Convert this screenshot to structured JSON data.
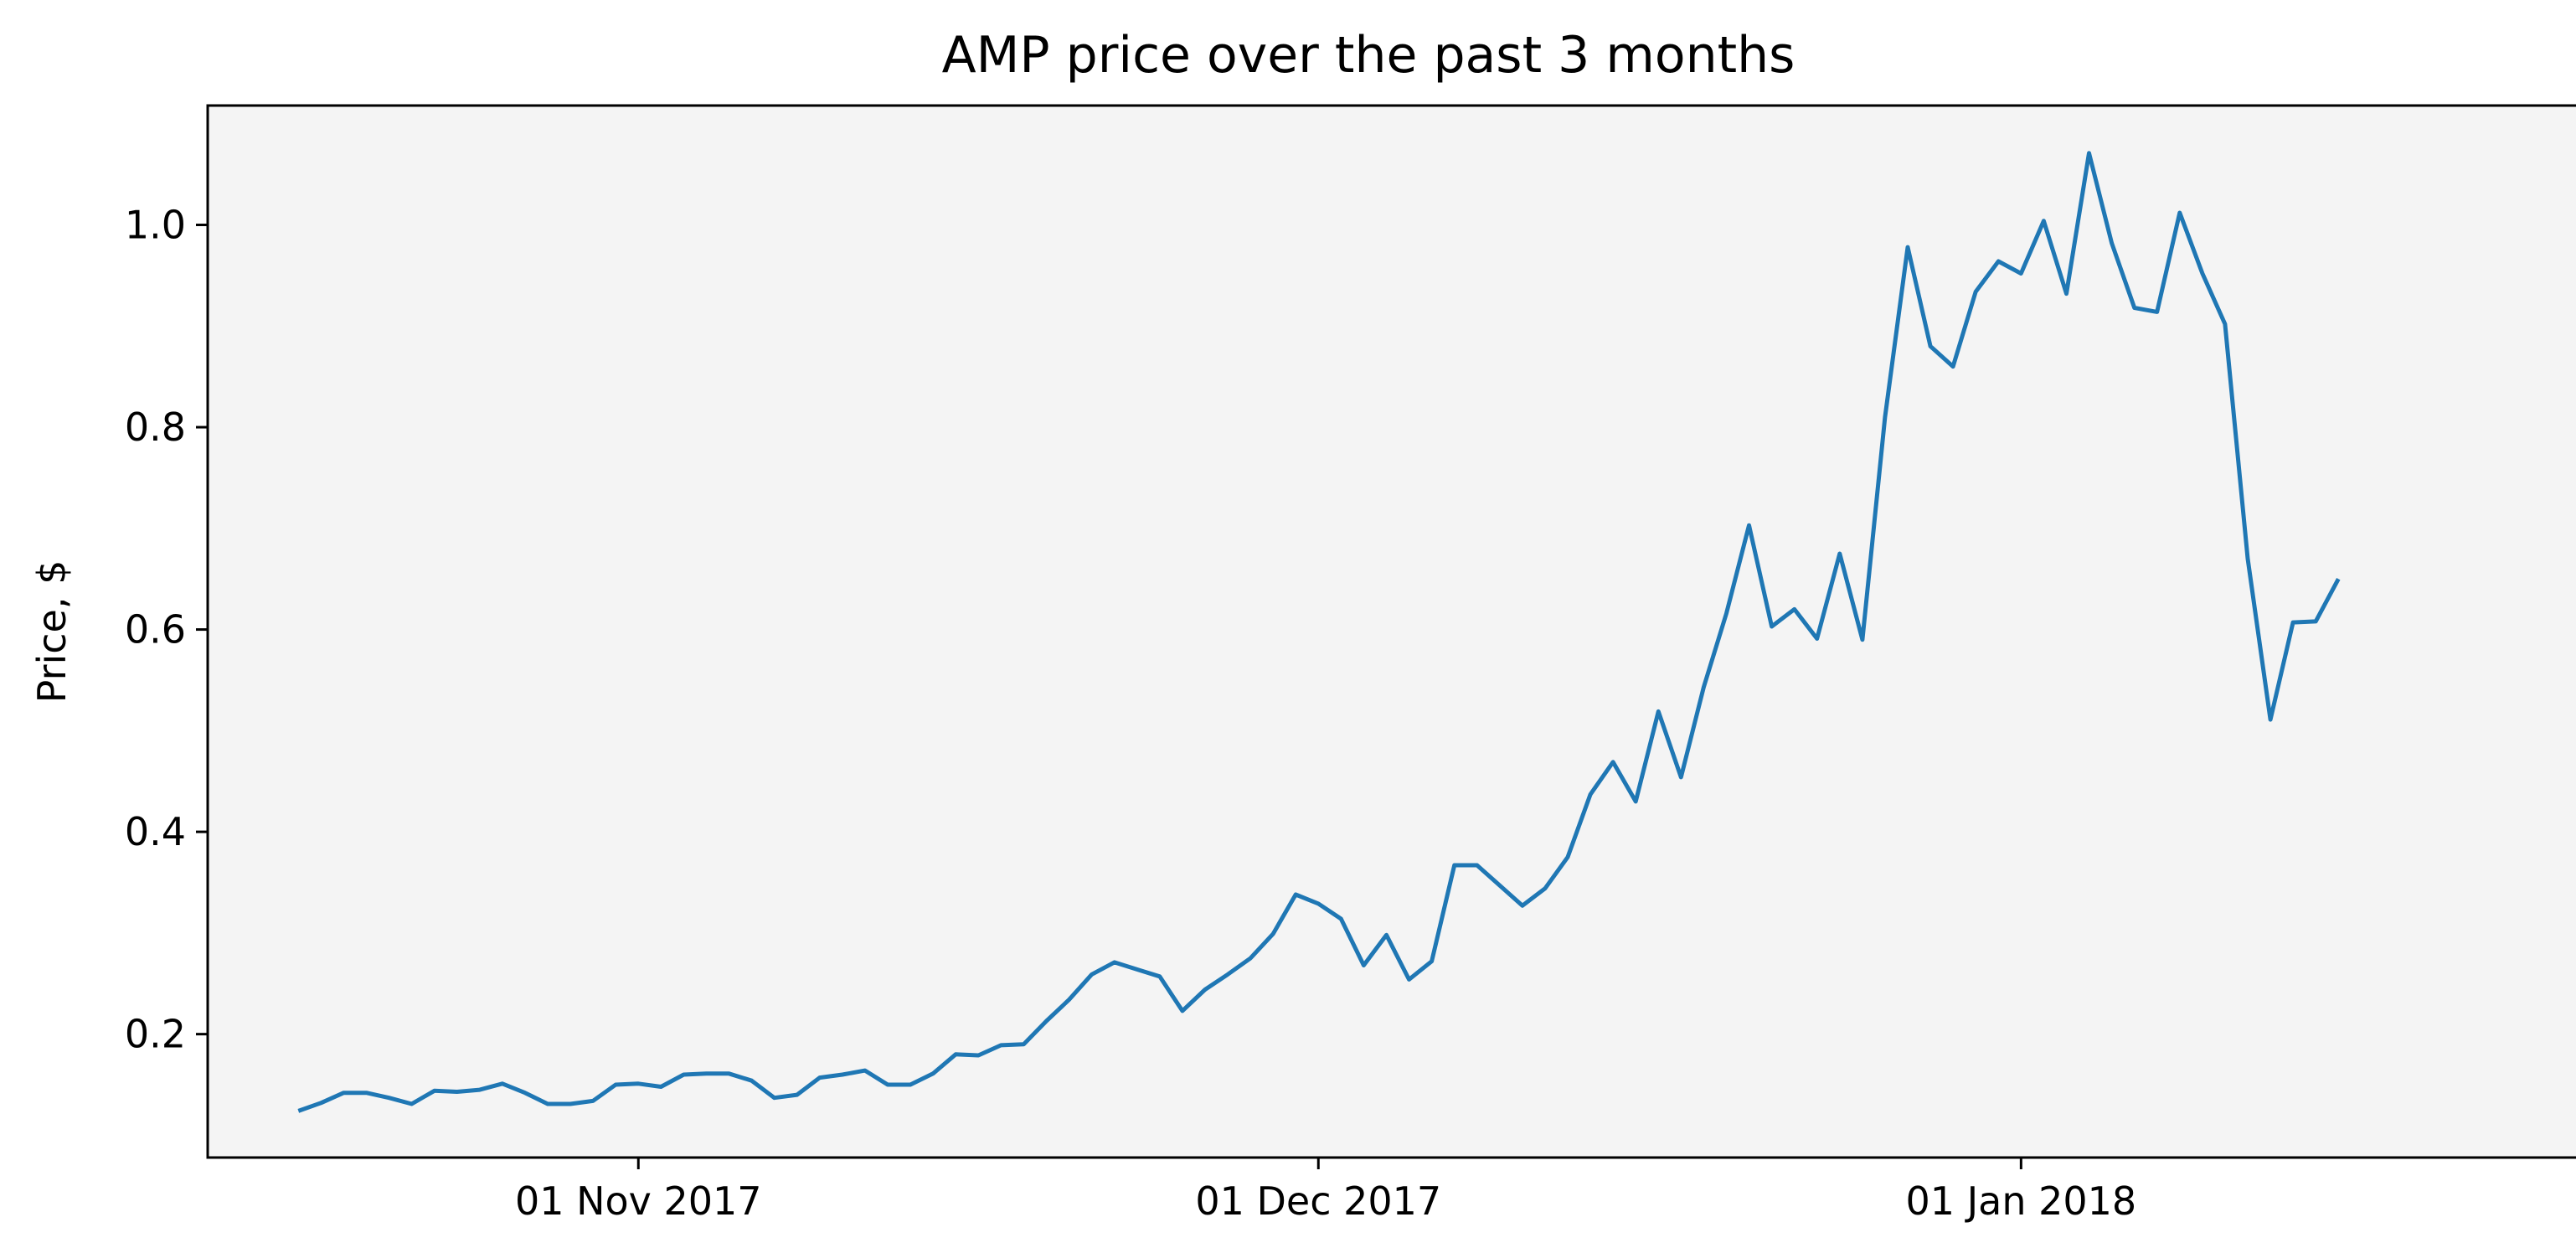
{
  "chart_data": {
    "type": "line",
    "title": "AMP price over the past 3 months",
    "xlabel": "",
    "ylabel": "Price, $",
    "grid": false,
    "legend": "none",
    "x_start": "2017-10-17",
    "x_step_days": 1,
    "xlim": [
      "2017-10-13",
      "2018-01-26"
    ],
    "ylim": [
      0.078,
      1.118
    ],
    "x_ticks": [
      {
        "date": "2017-11-01",
        "label": "01 Nov 2017"
      },
      {
        "date": "2017-12-01",
        "label": "01 Dec 2017"
      },
      {
        "date": "2018-01-01",
        "label": "01 Jan 2018"
      }
    ],
    "y_ticks": [
      {
        "value": 0.2,
        "label": "0.2"
      },
      {
        "value": 0.4,
        "label": "0.4"
      },
      {
        "value": 0.6,
        "label": "0.6"
      },
      {
        "value": 0.8,
        "label": "0.8"
      },
      {
        "value": 1.0,
        "label": "1.0"
      }
    ],
    "series": [
      {
        "values": [
          0.124,
          0.132,
          0.142,
          0.142,
          0.137,
          0.131,
          0.144,
          0.143,
          0.145,
          0.151,
          0.142,
          0.131,
          0.131,
          0.134,
          0.15,
          0.151,
          0.148,
          0.16,
          0.161,
          0.161,
          0.154,
          0.137,
          0.14,
          0.157,
          0.16,
          0.164,
          0.15,
          0.15,
          0.161,
          0.18,
          0.179,
          0.189,
          0.19,
          0.213,
          0.234,
          0.259,
          0.271,
          0.264,
          0.257,
          0.223,
          0.244,
          0.259,
          0.275,
          0.299,
          0.338,
          0.329,
          0.314,
          0.268,
          0.298,
          0.254,
          0.272,
          0.367,
          0.367,
          0.347,
          0.327,
          0.344,
          0.375,
          0.437,
          0.469,
          0.43,
          0.519,
          0.454,
          0.543,
          0.616,
          0.703,
          0.603,
          0.62,
          0.591,
          0.675,
          0.59,
          0.81,
          0.978,
          0.88,
          0.86,
          0.934,
          0.964,
          0.952,
          1.004,
          0.932,
          1.071,
          0.982,
          0.918,
          0.914,
          1.012,
          0.952,
          0.902,
          0.67,
          0.511,
          0.607,
          0.608,
          0.65
        ]
      }
    ],
    "colors": {
      "line": "#1f77b4",
      "plot_background": "#f4f4f4",
      "axes": "#000000"
    }
  }
}
